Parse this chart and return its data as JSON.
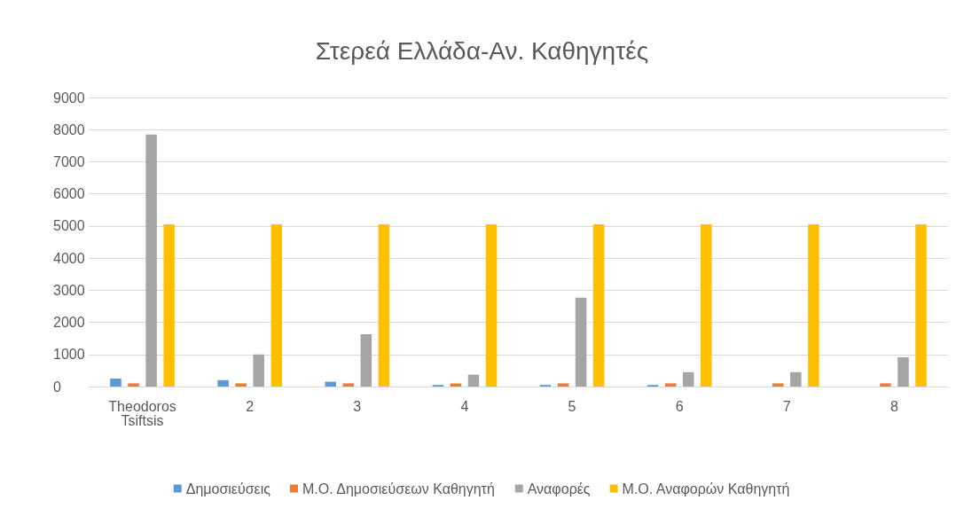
{
  "chart_data": {
    "type": "bar",
    "title": "Στερεά Ελλάδα-Αν. Καθηγητές",
    "categories": [
      "Theodoros\nTsiftsis",
      "2",
      "3",
      "4",
      "5",
      "6",
      "7",
      "8"
    ],
    "series": [
      {
        "name": "Δημοσιεύσεις",
        "color": "#5b9bd5",
        "values": [
          250,
          200,
          150,
          50,
          50,
          50,
          0,
          0
        ]
      },
      {
        "name": "Μ.Ο. Δημοσιεύσεων Καθηγητή",
        "color": "#ed7d31",
        "values": [
          100,
          100,
          100,
          100,
          100,
          100,
          100,
          100
        ]
      },
      {
        "name": "Αναφορές",
        "color": "#a5a5a5",
        "values": [
          7850,
          1000,
          1630,
          370,
          2770,
          450,
          450,
          910
        ]
      },
      {
        "name": "Μ.Ο. Αναφορών Καθηγητή",
        "color": "#ffc000",
        "values": [
          5050,
          5050,
          5050,
          5050,
          5050,
          5050,
          5050,
          5050
        ]
      }
    ],
    "ylim": [
      0,
      9000
    ],
    "yticks": [
      0,
      1000,
      2000,
      3000,
      4000,
      5000,
      6000,
      7000,
      8000,
      9000
    ],
    "grid": "y",
    "legend": "bottom"
  }
}
